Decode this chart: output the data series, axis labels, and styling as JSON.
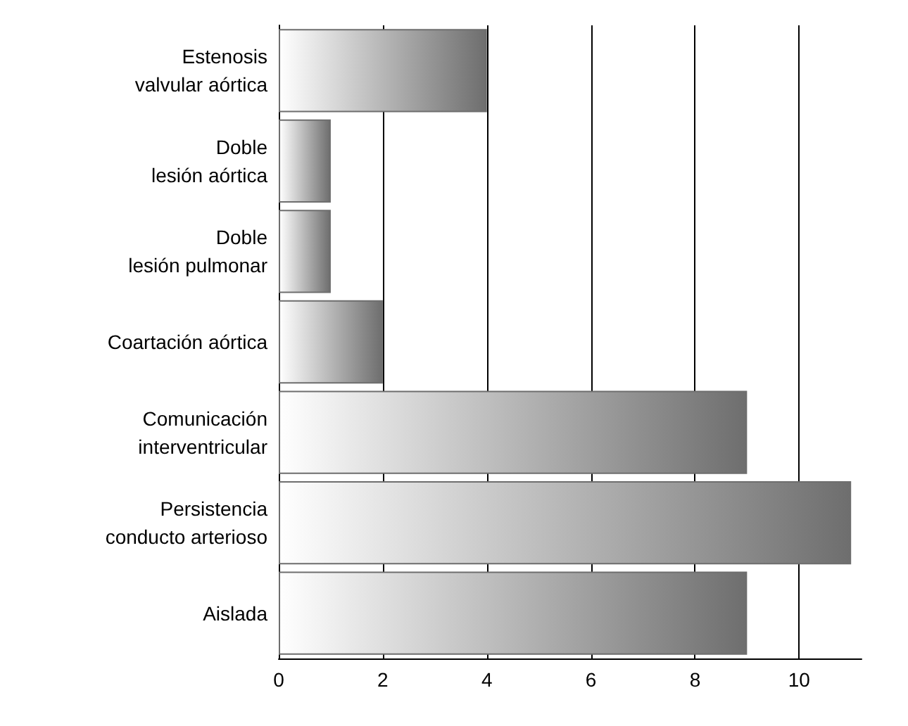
{
  "chart_data": {
    "type": "bar",
    "orientation": "horizontal",
    "categories": [
      "Estenosis\nvalvular aórtica",
      "Doble\nlesión aórtica",
      "Doble\nlesión pulmonar",
      "Coartación aórtica",
      "Comunicación\ninterventricular",
      "Persistencia\nconducto arterioso",
      "Aislada"
    ],
    "values": [
      4,
      1,
      1,
      2,
      9,
      11,
      9
    ],
    "color": "#6e6e6e",
    "xlim": [
      0,
      11.2
    ],
    "xticks": [
      0,
      2,
      4,
      6,
      8,
      10
    ],
    "grid": "x"
  }
}
